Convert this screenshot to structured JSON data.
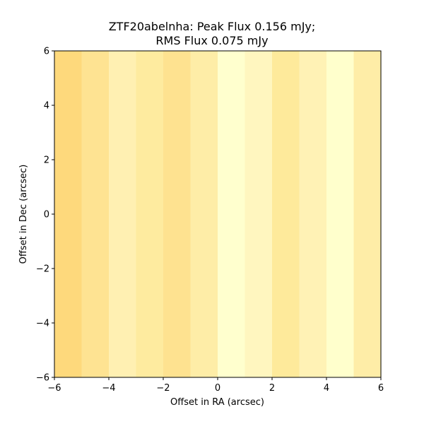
{
  "chart_data": {
    "type": "heatmap",
    "title_line1": "ZTF20abelnha: Peak Flux 0.156 mJy;",
    "title_line2": "RMS Flux 0.075 mJy",
    "xlabel": "Offset in RA (arcsec)",
    "ylabel": "Offset in Dec (arcsec)",
    "xlim": [
      -6,
      6
    ],
    "ylim": [
      -6,
      6
    ],
    "xticks": [
      -6,
      -4,
      -2,
      0,
      2,
      4,
      6
    ],
    "yticks": [
      -6,
      -4,
      -2,
      0,
      2,
      4,
      6
    ],
    "xtick_labels": [
      "−6",
      "−4",
      "−2",
      "0",
      "2",
      "4",
      "6"
    ],
    "ytick_labels": [
      "−6",
      "−4",
      "−2",
      "0",
      "2",
      "4",
      "6"
    ],
    "grid": false,
    "column_edges": [
      -6,
      -5,
      -4,
      -3,
      -2,
      -1,
      0,
      1,
      2,
      3,
      4,
      5,
      6
    ],
    "column_colors": [
      "#fed97c",
      "#fee392",
      "#fff0b2",
      "#feeb9f",
      "#fee290",
      "#feeda7",
      "#ffffce",
      "#fff6bf",
      "#feea9b",
      "#fff2b5",
      "#ffffcc",
      "#feeda7"
    ]
  }
}
